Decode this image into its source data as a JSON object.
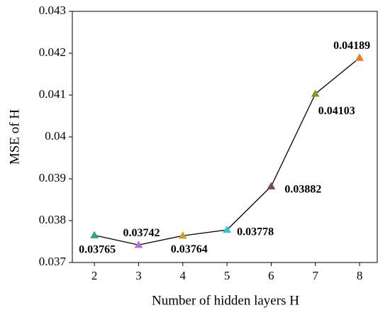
{
  "chart_data": {
    "type": "line",
    "x_label": "Number of hidden layers H",
    "y_label": "MSE of  H",
    "x": [
      2,
      3,
      4,
      5,
      6,
      7,
      8
    ],
    "values": [
      0.03765,
      0.03742,
      0.03764,
      0.03778,
      0.03882,
      0.04103,
      0.04189
    ],
    "line_color": "#000000",
    "marker_colors": [
      "#2ca87f",
      "#b26cdb",
      "#c8a020",
      "#2bc6d1",
      "#7a4a4a",
      "#8f9520",
      "#f07a1a"
    ],
    "xlim": [
      1.5,
      8.4
    ],
    "xticks": [
      2,
      3,
      4,
      5,
      6,
      7,
      8
    ],
    "ylim": [
      0.037,
      0.043
    ],
    "yticks": [
      0.037,
      0.038,
      0.039,
      0.04,
      0.041,
      0.042,
      0.043
    ]
  }
}
